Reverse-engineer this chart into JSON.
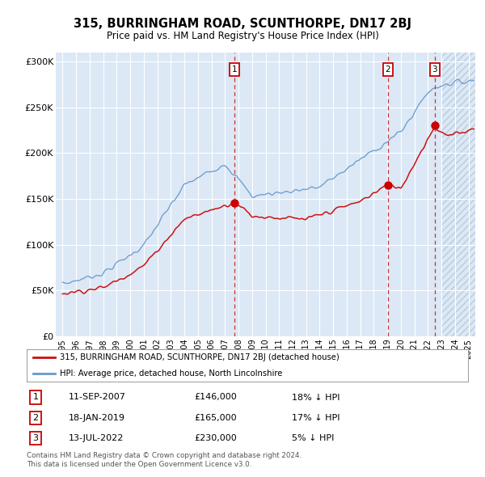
{
  "title": "315, BURRINGHAM ROAD, SCUNTHORPE, DN17 2BJ",
  "subtitle": "Price paid vs. HM Land Registry's House Price Index (HPI)",
  "legend_line1": "315, BURRINGHAM ROAD, SCUNTHORPE, DN17 2BJ (detached house)",
  "legend_line2": "HPI: Average price, detached house, North Lincolnshire",
  "footer1": "Contains HM Land Registry data © Crown copyright and database right 2024.",
  "footer2": "This data is licensed under the Open Government Licence v3.0.",
  "sales": [
    {
      "label": "1",
      "date": "11-SEP-2007",
      "price": 146000,
      "pct": "18% ↓ HPI",
      "x_year": 2007.7
    },
    {
      "label": "2",
      "date": "18-JAN-2019",
      "price": 165000,
      "pct": "17% ↓ HPI",
      "x_year": 2019.05
    },
    {
      "label": "3",
      "date": "13-JUL-2022",
      "price": 230000,
      "pct": "5% ↓ HPI",
      "x_year": 2022.5
    }
  ],
  "ylim": [
    0,
    310000
  ],
  "xlim_start": 1994.5,
  "xlim_end": 2025.5,
  "plot_bg": "#dce8f5",
  "red_line_color": "#cc1111",
  "blue_line_color": "#6699cc",
  "sale_marker_color": "#cc0000",
  "vline_color": "#cc3333",
  "number_box_color": "#cc0000",
  "hatch_start": 2023.0,
  "grid_color": "#ffffff",
  "yticks": [
    0,
    50000,
    100000,
    150000,
    200000,
    250000,
    300000
  ],
  "ylabels": [
    "£0",
    "£50K",
    "£100K",
    "£150K",
    "£200K",
    "£250K",
    "£300K"
  ]
}
